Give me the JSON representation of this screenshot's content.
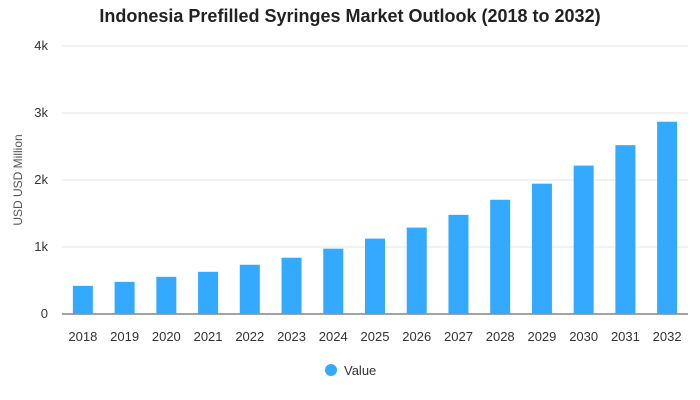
{
  "chart_data": {
    "type": "bar",
    "title": "Indonesia Prefilled Syringes Market Outlook (2018 to 2032)",
    "xlabel": "",
    "ylabel": "USD USD Million",
    "categories": [
      "2018",
      "2019",
      "2020",
      "2021",
      "2022",
      "2023",
      "2024",
      "2025",
      "2026",
      "2027",
      "2028",
      "2029",
      "2030",
      "2031",
      "2032"
    ],
    "series": [
      {
        "name": "Value",
        "color": "#33aaff",
        "values": [
          420,
          480,
          555,
          630,
          735,
          840,
          975,
          1125,
          1290,
          1480,
          1705,
          1945,
          2215,
          2520,
          2870
        ]
      }
    ],
    "ylim": [
      0,
      4000
    ],
    "yticks": [
      0,
      1000,
      2000,
      3000,
      4000
    ],
    "ytick_labels": [
      "0",
      "1k",
      "2k",
      "3k",
      "4k"
    ],
    "grid": true,
    "legend_position": "bottom-center"
  }
}
